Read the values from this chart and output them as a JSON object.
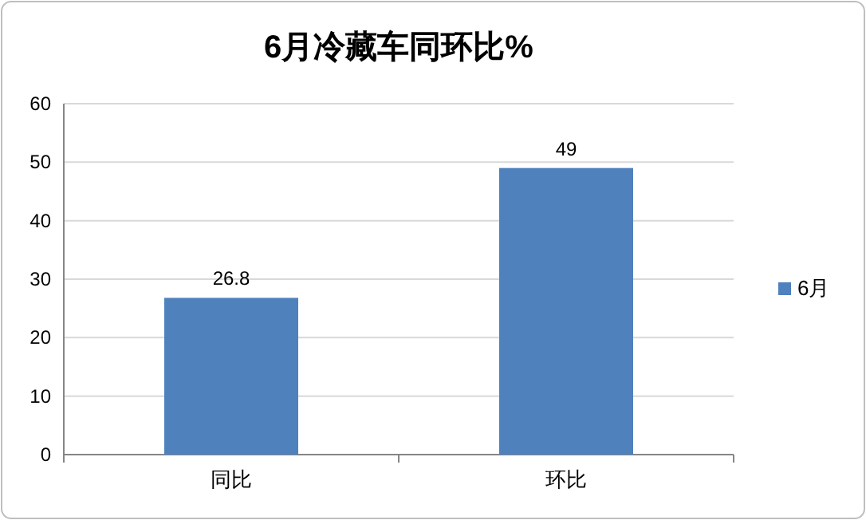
{
  "chart_data": {
    "type": "bar",
    "title": "6月冷藏车同环比%",
    "categories": [
      "同比",
      "环比"
    ],
    "series": [
      {
        "name": "6月",
        "color": "#4f81bd",
        "values": [
          26.8,
          49
        ]
      }
    ],
    "ylim": [
      0,
      60
    ],
    "yticks": [
      0,
      10,
      20,
      30,
      40,
      50,
      60
    ],
    "grid": "y",
    "legend": "right",
    "data_labels": true
  }
}
